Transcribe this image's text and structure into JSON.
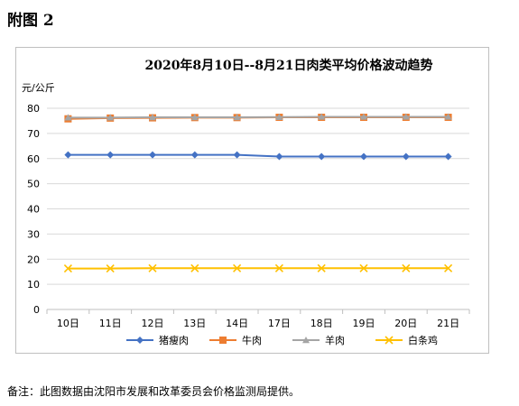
{
  "figure": {
    "label": "附图 2"
  },
  "footnote": "备注：此图数据由沈阳市发展和改革委员会价格监测局提供。",
  "colors": {
    "pork": "#4472C4",
    "beef": "#ED7D31",
    "mutton": "#A5A5A5",
    "chicken": "#FFC000",
    "grid": "#d9d9d9",
    "axis": "#bfbfbf",
    "text": "#000000"
  },
  "chart_data": {
    "type": "line",
    "title": "2020年8月10日--8月21日肉类平均价格波动趋势",
    "ylabel": "元/公斤",
    "xlabel": "",
    "categories": [
      "10日",
      "11日",
      "12日",
      "13日",
      "14日",
      "17日",
      "18日",
      "19日",
      "20日",
      "21日"
    ],
    "ylim": [
      0,
      80
    ],
    "yticks": [
      0,
      10,
      20,
      30,
      40,
      50,
      60,
      70,
      80
    ],
    "grid": true,
    "legend_position": "bottom",
    "series": [
      {
        "name": "猪瘦肉",
        "color": "#4472C4",
        "marker": "diamond",
        "values": [
          61.5,
          61.5,
          61.5,
          61.5,
          61.5,
          60.8,
          60.8,
          60.8,
          60.8,
          60.8
        ]
      },
      {
        "name": "牛肉",
        "color": "#ED7D31",
        "marker": "square",
        "values": [
          75.8,
          76.1,
          76.2,
          76.3,
          76.3,
          76.4,
          76.4,
          76.4,
          76.4,
          76.4
        ]
      },
      {
        "name": "羊肉",
        "color": "#A5A5A5",
        "marker": "triangle",
        "values": [
          76.3,
          76.3,
          76.4,
          76.4,
          76.4,
          76.5,
          76.6,
          76.6,
          76.6,
          76.6
        ]
      },
      {
        "name": "白条鸡",
        "color": "#FFC000",
        "marker": "x",
        "values": [
          16.3,
          16.3,
          16.4,
          16.4,
          16.4,
          16.4,
          16.4,
          16.4,
          16.4,
          16.4
        ]
      }
    ]
  }
}
